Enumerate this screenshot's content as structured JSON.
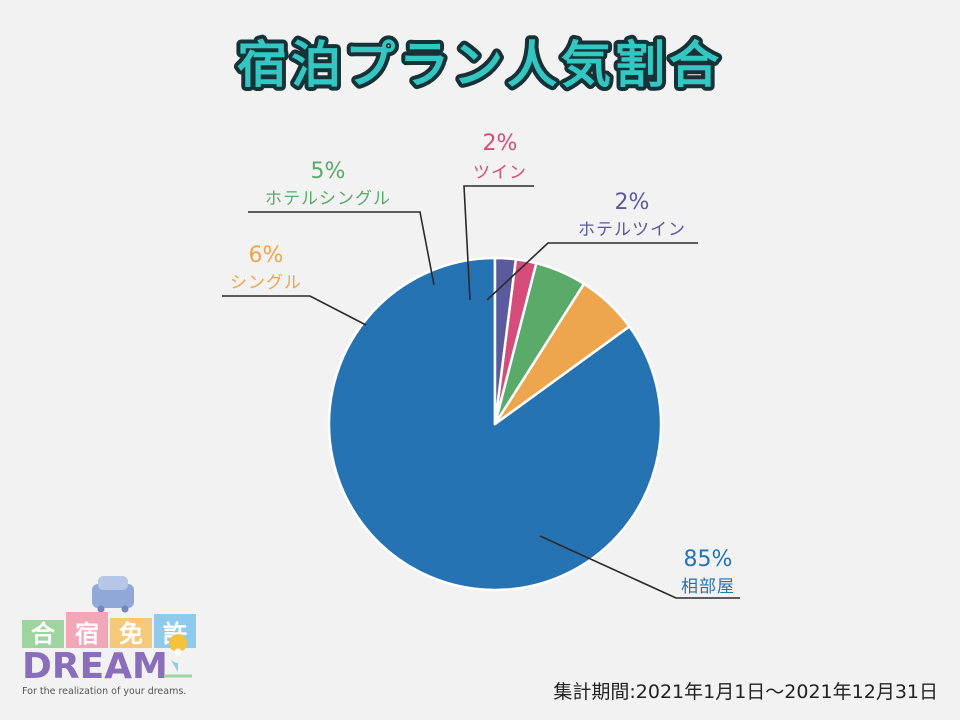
{
  "title": "宿泊プラン人気割合",
  "period": "集計期間:2021年1月1日～2021年12月31日",
  "chart_data": {
    "type": "pie",
    "title": "宿泊プラン人気割合",
    "slices": [
      {
        "name": "相部屋",
        "value": 85,
        "label": "85%",
        "color": "#2673b4"
      },
      {
        "name": "シングル",
        "value": 6,
        "label": "6%",
        "color": "#eda54e"
      },
      {
        "name": "ホテルシングル",
        "value": 5,
        "label": "5%",
        "color": "#5aaa6a"
      },
      {
        "name": "ツイン",
        "value": 2,
        "label": "2%",
        "color": "#d64c7a"
      },
      {
        "name": "ホテルツイン",
        "value": 2,
        "label": "2%",
        "color": "#5a5a9c"
      }
    ],
    "start": "12 o'clock",
    "direction": "counter-clockwise"
  },
  "logo": {
    "kanji": [
      "合",
      "宿",
      "免",
      "許"
    ],
    "kanji_colors": [
      "#9ed4a0",
      "#f2a7b8",
      "#f5c97a",
      "#8fc9ec"
    ],
    "word": "DREAM",
    "tagline": "For the realization of your dreams."
  }
}
